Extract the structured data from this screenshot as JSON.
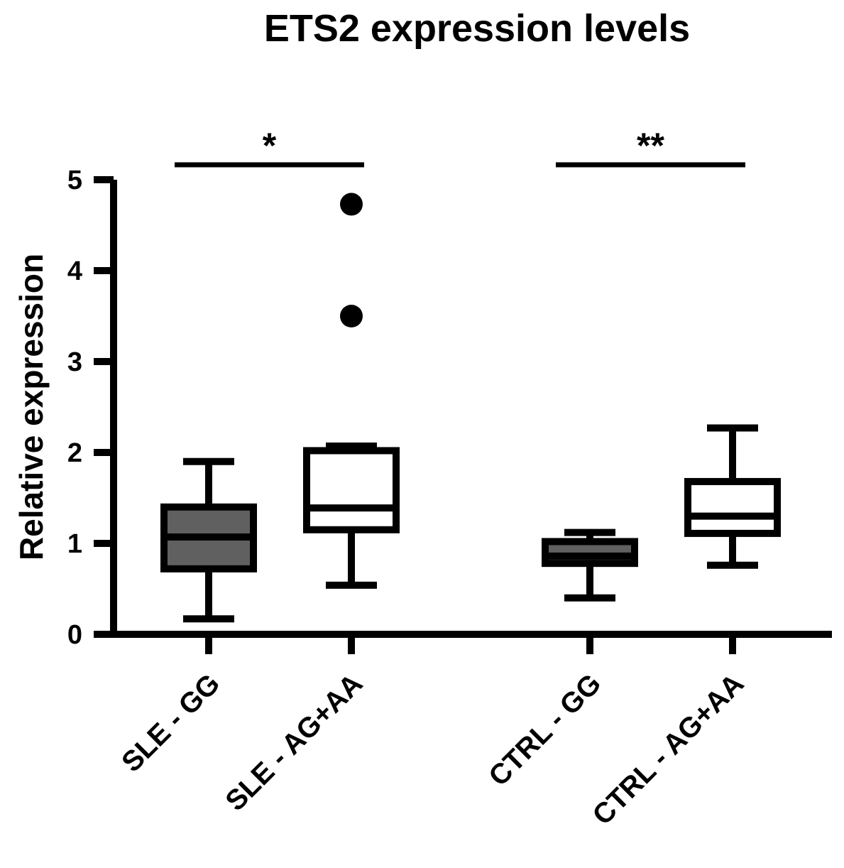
{
  "chart_data": {
    "type": "box",
    "title": "ETS2 expression levels",
    "xlabel": "",
    "ylabel": "Relative expression",
    "ylim": [
      0,
      5
    ],
    "yticks": [
      0,
      1,
      2,
      3,
      4,
      5
    ],
    "ytick_labels": [
      "0",
      "1",
      "2",
      "3",
      "4",
      "5"
    ],
    "categories": [
      "SLE - GG",
      "SLE - AG+AA",
      "CTRL - GG",
      "CTRL - AG+AA"
    ],
    "boxes": [
      {
        "name": "SLE - GG",
        "fill": "#606060",
        "min": 0.17,
        "q1": 0.72,
        "median": 1.07,
        "q3": 1.4,
        "max": 1.9,
        "outliers": []
      },
      {
        "name": "SLE - AG+AA",
        "fill": "#ffffff",
        "min": 0.54,
        "q1": 1.15,
        "median": 1.39,
        "q3": 2.02,
        "max": 2.07,
        "outliers": [
          3.5,
          4.73
        ]
      },
      {
        "name": "CTRL - GG",
        "fill": "#606060",
        "min": 0.4,
        "q1": 0.78,
        "median": 0.86,
        "q3": 1.02,
        "max": 1.12,
        "outliers": []
      },
      {
        "name": "CTRL - AG+AA",
        "fill": "#ffffff",
        "min": 0.76,
        "q1": 1.11,
        "median": 1.3,
        "q3": 1.68,
        "max": 2.27,
        "outliers": []
      }
    ],
    "significance": [
      {
        "from": 0,
        "to": 1,
        "label": "*"
      },
      {
        "from": 2,
        "to": 3,
        "label": "**"
      }
    ],
    "colors": {
      "stroke": "#000000",
      "filled_box": "#606060",
      "open_box": "#ffffff"
    }
  }
}
